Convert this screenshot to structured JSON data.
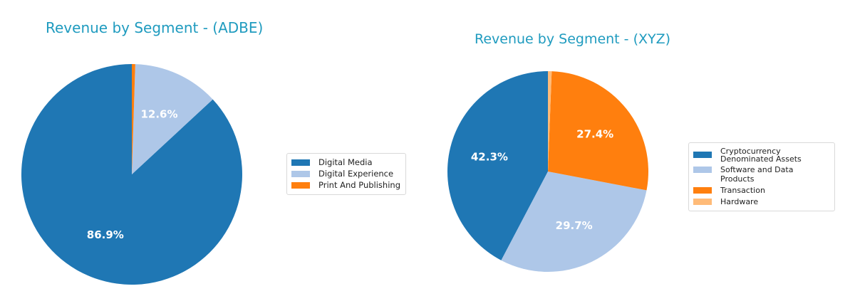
{
  "chart_data": [
    {
      "type": "pie",
      "title": "Revenue by Segment - (ADBE)",
      "categories": [
        "Digital Media",
        "Digital Experience",
        "Print And Publishing"
      ],
      "values": [
        86.9,
        12.6,
        0.5
      ],
      "labels": [
        "86.9%",
        "12.6%",
        ""
      ],
      "colors": [
        "#1f77b4",
        "#aec7e8",
        "#ff7f0e"
      ],
      "start_angle": 90,
      "direction": "counterclockwise",
      "legend": {
        "position": "right",
        "entries": [
          "Digital Media",
          "Digital Experience",
          "Print And Publishing"
        ]
      }
    },
    {
      "type": "pie",
      "title": "Revenue by Segment - (XYZ)",
      "categories": [
        "Cryptocurrency Denominated Assets",
        "Software and Data Products",
        "Transaction",
        "Hardware"
      ],
      "values": [
        42.3,
        29.7,
        27.4,
        0.6
      ],
      "labels": [
        "42.3%",
        "29.7%",
        "27.4%",
        ""
      ],
      "colors": [
        "#1f77b4",
        "#aec7e8",
        "#ff7f0e",
        "#ffbb78"
      ],
      "start_angle": 90,
      "direction": "counterclockwise",
      "legend": {
        "position": "right",
        "entries": [
          "Cryptocurrency Denominated Assets",
          "Software and Data Products",
          "Transaction",
          "Hardware"
        ]
      }
    }
  ],
  "charts": {
    "adbe": {
      "title": "Revenue by Segment - (ADBE)",
      "legend": [
        {
          "label": "Digital Media",
          "color": "#1f77b4"
        },
        {
          "label": "Digital Experience",
          "color": "#aec7e8"
        },
        {
          "label": "Print And Publishing",
          "color": "#ff7f0e"
        }
      ]
    },
    "xyz": {
      "title": "Revenue by Segment - (XYZ)",
      "legend": [
        {
          "label": "Cryptocurrency Denominated Assets",
          "color": "#1f77b4"
        },
        {
          "label": "Software and Data Products",
          "color": "#aec7e8"
        },
        {
          "label": "Transaction",
          "color": "#ff7f0e"
        },
        {
          "label": "Hardware",
          "color": "#ffbb78"
        }
      ]
    }
  },
  "colors": {
    "title": "#1f9bbf",
    "label_text": "#ffffff"
  }
}
